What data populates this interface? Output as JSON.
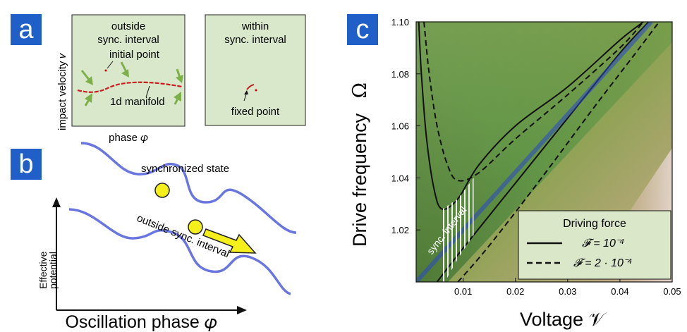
{
  "panels": {
    "a": {
      "letter": "a",
      "ylabel": "impact velocity 𝑣",
      "xlabel": "phase 𝜑",
      "box1": {
        "title1": "outside",
        "title2": "sync. interval",
        "annot_initial": "initial point",
        "annot_manifold": "1d manifold"
      },
      "box2": {
        "title1": "within",
        "title2": "sync. interval",
        "annot_fixed": "fixed point"
      }
    },
    "b": {
      "letter": "b",
      "label_sync": "synchronized state",
      "label_outside": "outside sync. interval",
      "ylabel1": "Effective",
      "ylabel2": "potential",
      "xlabel": "Oscillation phase 𝜑"
    },
    "c": {
      "letter": "c",
      "xlabel": "Voltage  𝒱",
      "ylabel_text": "Drive frequency",
      "ylabel_symbol": "Ω",
      "sync_label": "sync. interval",
      "legend": {
        "title": "Driving force",
        "entries": [
          {
            "label": "𝓕 = 10⁻⁴",
            "style": "solid"
          },
          {
            "label": "𝓕 = 2 · 10⁻⁴",
            "style": "dashed"
          }
        ]
      }
    }
  },
  "chart_data": {
    "type": "line",
    "x": {
      "label": "Voltage 𝒱",
      "lim": [
        0.001,
        0.05
      ],
      "ticks": [
        "0.01",
        "0.02",
        "0.03",
        "0.04",
        "0.05"
      ]
    },
    "y": {
      "label": "Drive frequency Ω",
      "lim": [
        1.0,
        1.1
      ],
      "ticks": [
        "1.02",
        "1.04",
        "1.06",
        "1.08",
        "1.10"
      ]
    },
    "series": [
      {
        "name": "𝓕 = 10⁻⁴",
        "style": "solid",
        "left_branch": [
          [
            0.0015,
            1.1
          ],
          [
            0.002,
            1.08
          ],
          [
            0.003,
            1.055
          ],
          [
            0.0045,
            1.035
          ],
          [
            0.006,
            1.028
          ],
          [
            0.009,
            1.032
          ],
          [
            0.013,
            1.045
          ],
          [
            0.02,
            1.06
          ],
          [
            0.03,
            1.075
          ],
          [
            0.04,
            1.093
          ],
          [
            0.0445,
            1.1
          ]
        ],
        "right_branch": [
          [
            0.005,
            1.0
          ],
          [
            0.01,
            1.013
          ],
          [
            0.02,
            1.038
          ],
          [
            0.03,
            1.063
          ],
          [
            0.04,
            1.088
          ],
          [
            0.0455,
            1.1
          ]
        ]
      },
      {
        "name": "𝓕 = 2 · 10⁻⁴",
        "style": "dashed",
        "left_branch": [
          [
            0.0025,
            1.1
          ],
          [
            0.0035,
            1.08
          ],
          [
            0.005,
            1.06
          ],
          [
            0.007,
            1.045
          ],
          [
            0.009,
            1.039
          ],
          [
            0.013,
            1.042
          ],
          [
            0.02,
            1.055
          ],
          [
            0.03,
            1.072
          ],
          [
            0.04,
            1.09
          ],
          [
            0.0445,
            1.1
          ]
        ],
        "right_branch": [
          [
            0.009,
            1.0
          ],
          [
            0.015,
            1.014
          ],
          [
            0.025,
            1.04
          ],
          [
            0.035,
            1.067
          ],
          [
            0.043,
            1.088
          ],
          [
            0.0475,
            1.1
          ]
        ]
      }
    ],
    "colors": {
      "sync_line": "#2a45c8",
      "background_high": "#a8b262",
      "background_low": "#2d6a30",
      "corner": "#e0cfcf"
    }
  }
}
